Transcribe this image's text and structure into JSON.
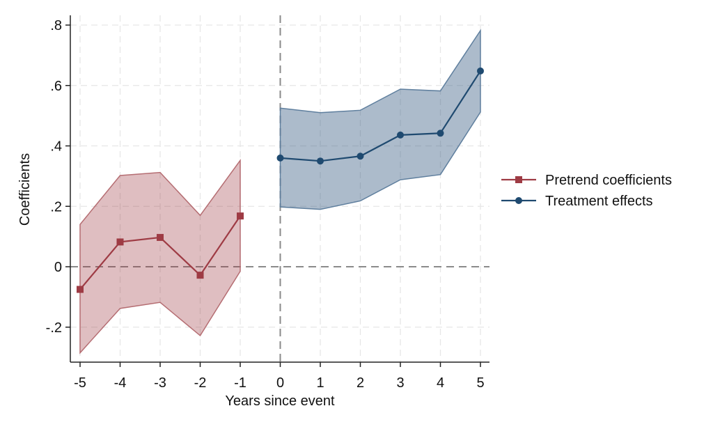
{
  "chart_data": {
    "type": "line",
    "xlabel": "Years since event",
    "ylabel": "Coefficients",
    "xlim": [
      -5.2,
      5.2
    ],
    "ylim": [
      -0.32,
      0.84
    ],
    "x_ticks": [
      -5,
      -4,
      -3,
      -2,
      -1,
      0,
      1,
      2,
      3,
      4,
      5
    ],
    "x_tick_labels": [
      "-5",
      "-4",
      "-3",
      "-2",
      "-1",
      "0",
      "1",
      "2",
      "3",
      "4",
      "5"
    ],
    "y_ticks": [
      -0.2,
      0,
      0.2,
      0.4,
      0.6,
      0.8
    ],
    "y_tick_labels": [
      "-.2",
      "0",
      ".2",
      ".4",
      ".6",
      ".8"
    ],
    "grid": true,
    "reference_lines": {
      "x": 0,
      "y": 0,
      "style": "dashed"
    },
    "legend_position": "right",
    "series": [
      {
        "name": "Pretrend coefficients",
        "color": "#9e3b44",
        "marker": "square",
        "x": [
          -5,
          -4,
          -3,
          -2,
          -1
        ],
        "y": [
          -0.075,
          0.082,
          0.097,
          -0.028,
          0.168
        ],
        "ci_lower": [
          -0.285,
          -0.138,
          -0.118,
          -0.228,
          -0.015
        ],
        "ci_upper": [
          0.14,
          0.302,
          0.312,
          0.17,
          0.352
        ]
      },
      {
        "name": "Treatment effects",
        "color": "#1f4a70",
        "marker": "circle",
        "x": [
          0,
          1,
          2,
          3,
          4,
          5
        ],
        "y": [
          0.36,
          0.35,
          0.366,
          0.436,
          0.442,
          0.648
        ],
        "ci_lower": [
          0.198,
          0.19,
          0.218,
          0.288,
          0.305,
          0.512
        ],
        "ci_upper": [
          0.525,
          0.51,
          0.518,
          0.588,
          0.582,
          0.782
        ]
      }
    ]
  }
}
